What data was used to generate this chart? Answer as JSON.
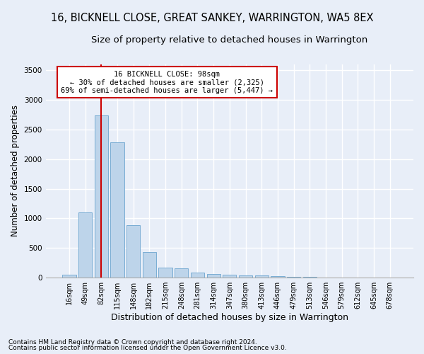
{
  "title": "16, BICKNELL CLOSE, GREAT SANKEY, WARRINGTON, WA5 8EX",
  "subtitle": "Size of property relative to detached houses in Warrington",
  "xlabel": "Distribution of detached houses by size in Warrington",
  "ylabel": "Number of detached properties",
  "footer_line1": "Contains HM Land Registry data © Crown copyright and database right 2024.",
  "footer_line2": "Contains public sector information licensed under the Open Government Licence v3.0.",
  "categories": [
    "16sqm",
    "49sqm",
    "82sqm",
    "115sqm",
    "148sqm",
    "182sqm",
    "215sqm",
    "248sqm",
    "281sqm",
    "314sqm",
    "347sqm",
    "380sqm",
    "413sqm",
    "446sqm",
    "479sqm",
    "513sqm",
    "546sqm",
    "579sqm",
    "612sqm",
    "645sqm",
    "678sqm"
  ],
  "values": [
    50,
    1100,
    2740,
    2280,
    880,
    430,
    170,
    160,
    90,
    60,
    50,
    40,
    35,
    25,
    20,
    10,
    8,
    5,
    3,
    2,
    1
  ],
  "bar_color": "#bdd4ea",
  "bar_edge_color": "#7aadd4",
  "vline_x_index": 2,
  "vline_color": "#cc0000",
  "ylim": [
    0,
    3600
  ],
  "yticks": [
    0,
    500,
    1000,
    1500,
    2000,
    2500,
    3000,
    3500
  ],
  "annotation_line1": "16 BICKNELL CLOSE: 98sqm",
  "annotation_line2": "← 30% of detached houses are smaller (2,325)",
  "annotation_line3": "69% of semi-detached houses are larger (5,447) →",
  "annotation_box_color": "#ffffff",
  "annotation_box_edge": "#cc0000",
  "bg_color": "#e8eef8",
  "plot_bg_color": "#e8eef8",
  "grid_color": "#ffffff",
  "title_fontsize": 10.5,
  "subtitle_fontsize": 9.5,
  "ylabel_fontsize": 8.5,
  "xlabel_fontsize": 9,
  "tick_fontsize": 7,
  "annotation_fontsize": 7.5,
  "footer_fontsize": 6.5
}
